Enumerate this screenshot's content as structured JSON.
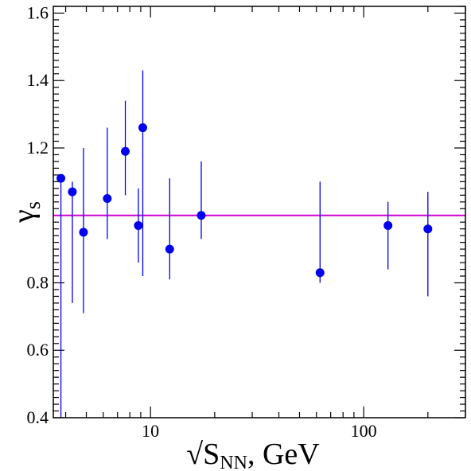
{
  "chart_data": {
    "type": "scatter",
    "xlabel_main": "√S",
    "xlabel_sub": "NN",
    "xlabel_suffix": ", GeV",
    "ylabel_main": "γ",
    "ylabel_sub": "s",
    "x_scale": "log",
    "xlim": [
      3.5,
      300
    ],
    "ylim": [
      0.4,
      1.62
    ],
    "x_ticks": [
      10,
      100
    ],
    "x_tick_labels": [
      "10",
      "100"
    ],
    "y_ticks": [
      0.4,
      0.6,
      0.8,
      1.2,
      1.4,
      1.6
    ],
    "y_tick_labels": [
      "0.4",
      "0.6",
      "0.8",
      "1.2",
      "1.4",
      "1.6"
    ],
    "reference_line": {
      "y": 1.0,
      "color": "#d000d0"
    },
    "marker_color": "#0000ee",
    "grid": false,
    "points": [
      {
        "x": 3.8,
        "y": 1.11,
        "y_low": 0.4,
        "y_high": 1.11
      },
      {
        "x": 4.3,
        "y": 1.07,
        "y_low": 0.74,
        "y_high": 1.1
      },
      {
        "x": 4.85,
        "y": 0.95,
        "y_low": 0.71,
        "y_high": 1.2
      },
      {
        "x": 6.27,
        "y": 1.05,
        "y_low": 0.93,
        "y_high": 1.26
      },
      {
        "x": 7.62,
        "y": 1.19,
        "y_low": 1.06,
        "y_high": 1.34
      },
      {
        "x": 8.77,
        "y": 0.97,
        "y_low": 0.86,
        "y_high": 1.08
      },
      {
        "x": 9.2,
        "y": 1.26,
        "y_low": 0.82,
        "y_high": 1.43
      },
      {
        "x": 12.3,
        "y": 0.9,
        "y_low": 0.81,
        "y_high": 1.11
      },
      {
        "x": 17.3,
        "y": 1.0,
        "y_low": 0.93,
        "y_high": 1.16
      },
      {
        "x": 62.4,
        "y": 0.83,
        "y_low": 0.8,
        "y_high": 1.1
      },
      {
        "x": 130,
        "y": 0.97,
        "y_low": 0.84,
        "y_high": 1.04
      },
      {
        "x": 200,
        "y": 0.96,
        "y_low": 0.76,
        "y_high": 1.07
      }
    ]
  }
}
